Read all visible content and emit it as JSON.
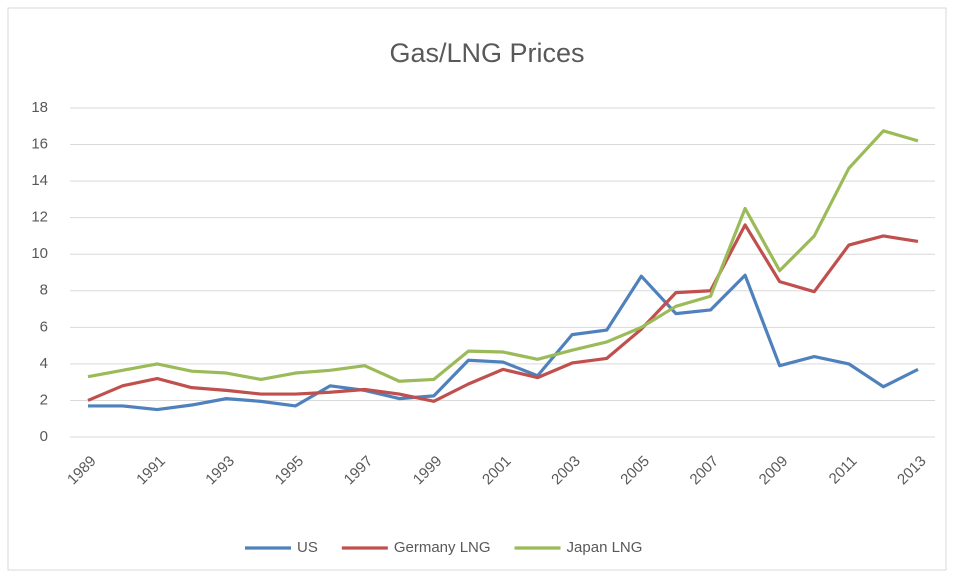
{
  "chart_data": {
    "type": "line",
    "title": "Gas/LNG Prices",
    "categories": [
      "1989",
      null,
      "1991",
      null,
      "1993",
      null,
      "1995",
      null,
      "1997",
      null,
      "1999",
      null,
      "2001",
      null,
      "2003",
      null,
      "2005",
      null,
      "2007",
      null,
      "2009",
      null,
      "2011",
      null,
      "2013"
    ],
    "series": [
      {
        "name": "US",
        "color": "#4f81bd",
        "values": [
          1.7,
          1.7,
          1.5,
          1.75,
          2.1,
          1.95,
          1.7,
          2.8,
          2.55,
          2.1,
          2.25,
          4.2,
          4.1,
          3.35,
          5.6,
          5.85,
          8.8,
          6.75,
          6.95,
          8.85,
          3.9,
          4.4,
          4.0,
          2.75,
          3.7
        ]
      },
      {
        "name": "Germany LNG",
        "color": "#c0504d",
        "values": [
          2.0,
          2.8,
          3.2,
          2.7,
          2.55,
          2.35,
          2.35,
          2.45,
          2.6,
          2.35,
          1.95,
          2.9,
          3.7,
          3.25,
          4.05,
          4.3,
          5.9,
          7.9,
          8.0,
          11.6,
          8.5,
          7.95,
          10.5,
          11.0,
          10.7
        ]
      },
      {
        "name": "Japan LNG",
        "color": "#9bbb59",
        "values": [
          3.3,
          3.65,
          4.0,
          3.6,
          3.5,
          3.15,
          3.5,
          3.65,
          3.9,
          3.05,
          3.15,
          4.7,
          4.65,
          4.25,
          4.75,
          5.2,
          6.0,
          7.15,
          7.7,
          12.5,
          9.1,
          11.0,
          14.7,
          16.75,
          16.2
        ]
      }
    ],
    "ylim": [
      0,
      18
    ],
    "yticks": [
      0,
      2,
      4,
      6,
      8,
      10,
      12,
      14,
      16,
      18
    ],
    "grid": true,
    "legend": "bottom"
  }
}
